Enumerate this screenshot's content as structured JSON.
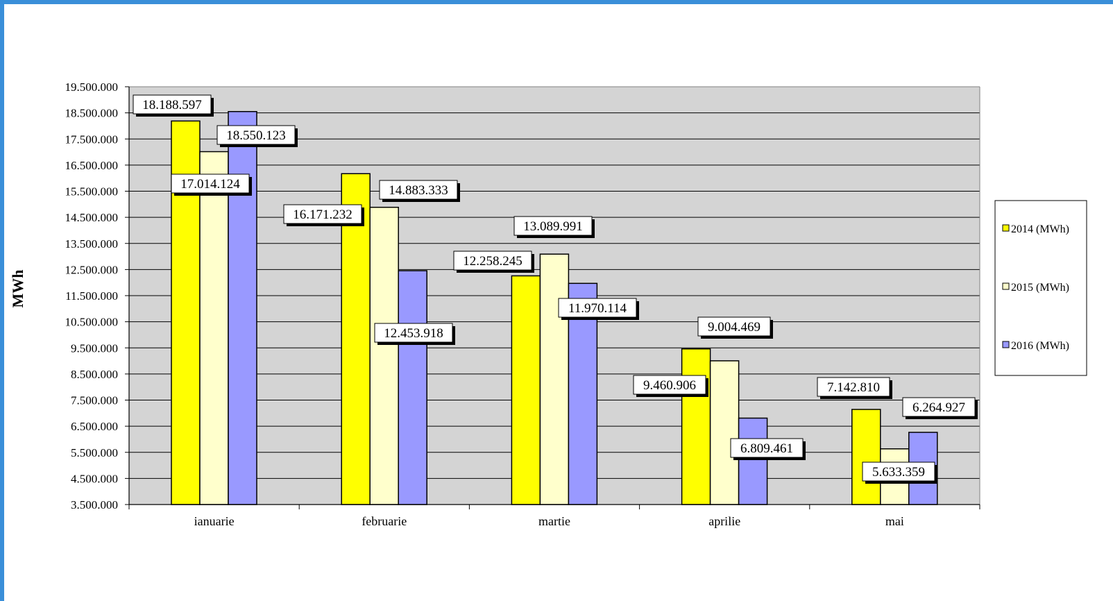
{
  "chart_data": {
    "type": "bar",
    "ylabel": "MWh",
    "xlabel": "",
    "categories": [
      "ianuarie",
      "februarie",
      "martie",
      "aprilie",
      "mai"
    ],
    "series": [
      {
        "name": "2014 (MWh)",
        "color": "#ffff00",
        "values": [
          18188597,
          16171232,
          12258245,
          9460906,
          7142810
        ],
        "labels": [
          "18.188.597",
          "16.171.232",
          "12.258.245",
          "9.460.906",
          "7.142.810"
        ]
      },
      {
        "name": "2015 (MWh)",
        "color": "#ffffcc",
        "values": [
          17014124,
          14883333,
          13089991,
          9004469,
          5633359
        ],
        "labels": [
          "17.014.124",
          "14.883.333",
          "13.089.991",
          "9.004.469",
          "5.633.359"
        ]
      },
      {
        "name": "2016 (MWh)",
        "color": "#9999ff",
        "values": [
          18550123,
          12453918,
          11970114,
          6809461,
          6264927
        ],
        "labels": [
          "18.550.123",
          "12.453.918",
          "11.970.114",
          "6.809.461",
          "6.264.927"
        ]
      }
    ],
    "ylim": [
      3500000,
      19500000
    ],
    "yticks": [
      "3.500.000",
      "4.500.000",
      "5.500.000",
      "6.500.000",
      "7.500.000",
      "8.500.000",
      "9.500.000",
      "10.500.000",
      "11.500.000",
      "12.500.000",
      "13.500.000",
      "14.500.000",
      "15.500.000",
      "16.500.000",
      "17.500.000",
      "18.500.000",
      "19.500.000"
    ],
    "ytick_values": [
      3500000,
      4500000,
      5500000,
      6500000,
      7500000,
      8500000,
      9500000,
      10500000,
      11500000,
      12500000,
      13500000,
      14500000,
      15500000,
      16500000,
      17500000,
      18500000,
      19500000
    ],
    "grid": true,
    "plot_background": "#d4d4d4",
    "legend_position": "right"
  }
}
